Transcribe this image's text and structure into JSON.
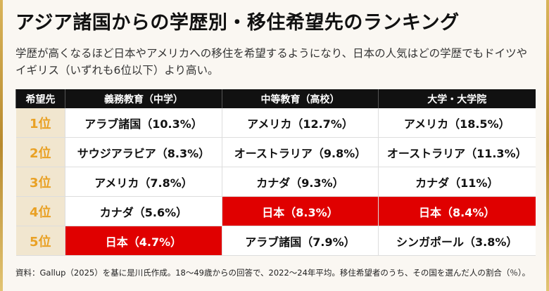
{
  "header": {
    "title": "アジア諸国からの学歴別・移住希望先のランキング",
    "subtitle": "学歴が高くなるほど日本やアメリカへの移住を希望するようになり、日本の人気はどの学歴でもドイツやイギリス（いずれも6位以下）より高い。"
  },
  "table": {
    "header": [
      "希望先",
      "義務教育（中学）",
      "中等教育（高校）",
      "大学・大学院"
    ],
    "rows": [
      [
        "1位",
        "アラブ諸国（10.3%）",
        "アメリカ（12.7%）",
        "アメリカ（18.5%）"
      ],
      [
        "2位",
        "サウジアラビア（8.3%）",
        "オーストラリア（9.8%）",
        "オーストラリア（11.3%）"
      ],
      [
        "3位",
        "アメリカ（7.8%）",
        "カナダ（9.3%）",
        "カナダ（11%）"
      ],
      [
        "4位",
        "カナダ（5.6%）",
        "日本（8.3%）",
        "日本（8.4%）"
      ],
      [
        "5位",
        "日本（4.7%）",
        "アラブ諸国（7.9%）",
        "シンガポール（3.8%）"
      ]
    ]
  },
  "source": "資料：Gallup（2025）を基に是川氏作成。18～49歳からの回答で、2022～24年平均。移住希望者のうち、その国を選んだ人の割合（％）。"
}
